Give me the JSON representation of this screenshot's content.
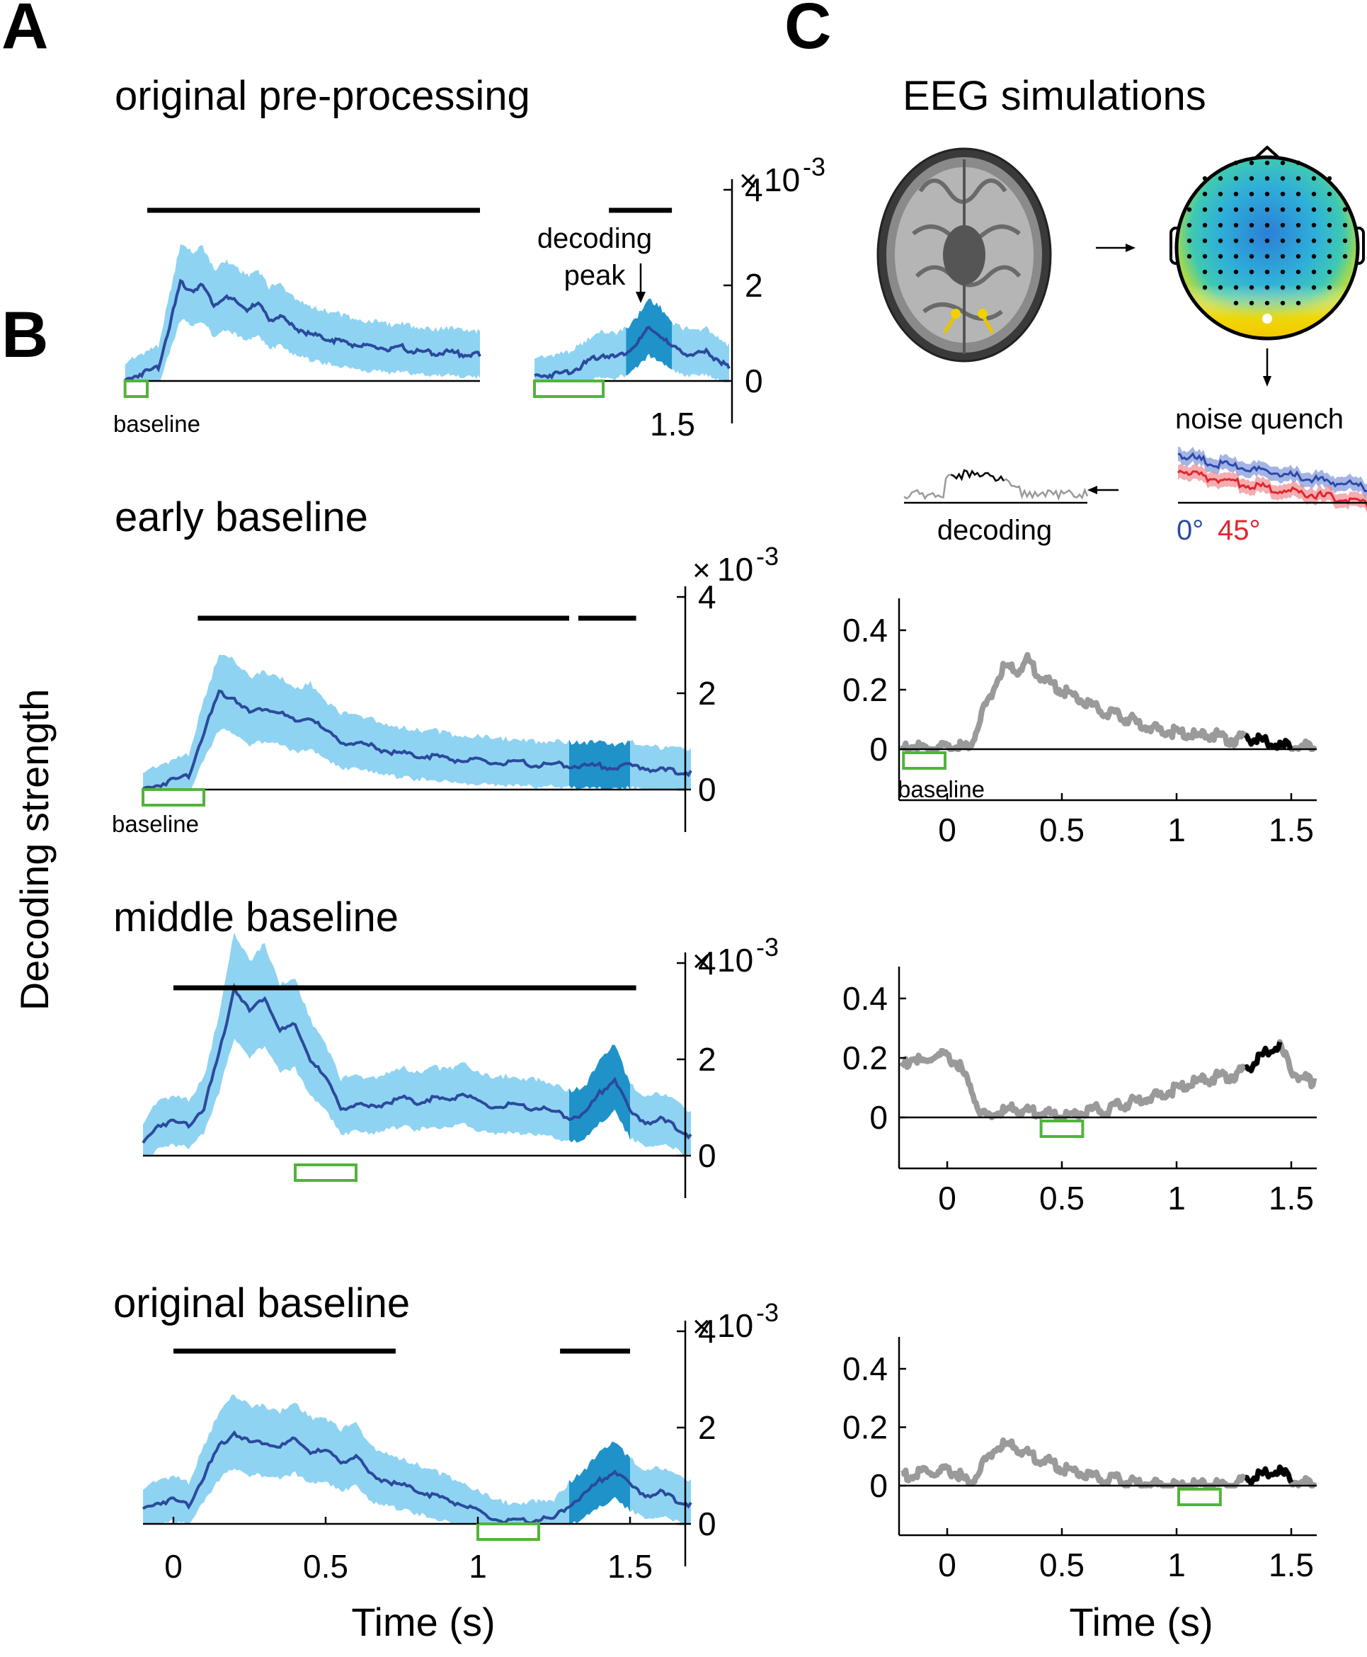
{
  "panel_labels": {
    "A": "A",
    "B": "B",
    "C": "C"
  },
  "titles": {
    "A": "original pre-processing",
    "B1": "early baseline",
    "B2": "middle baseline",
    "B3": "original baseline",
    "C": "EEG simulations"
  },
  "labels": {
    "baseline": "baseline",
    "decoding_peak_1": "decoding",
    "decoding_peak_2": "peak",
    "noise_quench": "noise quench",
    "decoding": "decoding",
    "angle_0": "0°",
    "angle_45": "45°",
    "scale_times": "×",
    "scale_base": "10",
    "scale_exp": "-3",
    "inset_x_tick": "1.5",
    "ylabel": "Decoding strength",
    "xlabel_left": "Time (s)",
    "xlabel_right": "Time (s)"
  },
  "colors": {
    "mean_line": "#2b4a9c",
    "ci_fill": "#8fd3f2",
    "highlight_fill": "#1f93c9",
    "sig_bar": "#000000",
    "baseline_box": "#52b33b",
    "sim_trace": "#9a9a9a",
    "sim_sig_trace": "#000000",
    "quench_0": "#2b4aa8",
    "quench_45": "#e0262e"
  },
  "icons": [
    "brain-mri-icon",
    "eeg-topography-icon",
    "arrow-right-icon",
    "arrow-down-icon",
    "arrow-left-icon"
  ],
  "chart_data": [
    {
      "id": "A-main",
      "type": "line",
      "title": "original pre-processing",
      "xlim": [
        -0.1,
        1.5
      ],
      "ylim": [
        0,
        4
      ],
      "y_scale": "x10^-3",
      "x": [
        -0.1,
        -0.05,
        0,
        0.05,
        0.1,
        0.15,
        0.2,
        0.25,
        0.3,
        0.35,
        0.4,
        0.45,
        0.5,
        0.55,
        0.6,
        0.65,
        0.7,
        0.75,
        0.8,
        0.85,
        0.9,
        0.95,
        1.0,
        1.05,
        1.1,
        1.15,
        1.2,
        1.25,
        1.3,
        1.35,
        1.4,
        1.45,
        1.5
      ],
      "series": [
        {
          "values": [
            0.0,
            0.12,
            0.2,
            0.3,
            1.15,
            2.05,
            1.9,
            2.0,
            1.6,
            1.75,
            1.65,
            1.5,
            1.6,
            1.3,
            1.35,
            1.15,
            1.05,
            0.95,
            0.9,
            0.85,
            0.8,
            0.75,
            0.7,
            0.7,
            0.65,
            0.7,
            0.62,
            0.6,
            0.58,
            0.6,
            0.58,
            0.55,
            0.55
          ]
        }
      ],
      "significance_bars": [
        [
          0.0,
          1.5
        ]
      ],
      "baseline_window": [
        -0.1,
        0.0
      ],
      "show_axis_ticks": false
    },
    {
      "id": "A-inset",
      "type": "line",
      "xlim": [
        0,
        1.7
      ],
      "ylim": [
        0,
        4
      ],
      "y_scale": "x10^-3",
      "x": [
        0,
        0.1,
        0.2,
        0.3,
        0.4,
        0.5,
        0.6,
        0.7,
        0.8,
        0.9,
        1.0,
        1.1,
        1.2,
        1.3,
        1.4,
        1.5,
        1.6,
        1.7
      ],
      "series": [
        {
          "values": [
            0.1,
            0.12,
            0.15,
            0.2,
            0.3,
            0.45,
            0.55,
            0.5,
            0.6,
            0.8,
            1.1,
            0.95,
            0.7,
            0.6,
            0.55,
            0.6,
            0.45,
            0.3
          ]
        }
      ],
      "highlight": [
        0.8,
        1.2
      ],
      "significance_bars": [
        [
          0.65,
          1.2
        ]
      ],
      "baseline_window": [
        0.0,
        0.6
      ],
      "yticks": [
        0,
        2,
        4
      ],
      "xticks": [
        1.5
      ]
    },
    {
      "id": "B-early",
      "type": "line",
      "title": "early baseline",
      "xlim": [
        -0.1,
        1.7
      ],
      "ylim": [
        0,
        4
      ],
      "y_scale": "x10^-3",
      "x": [
        -0.1,
        -0.05,
        0,
        0.05,
        0.1,
        0.15,
        0.2,
        0.25,
        0.3,
        0.35,
        0.4,
        0.45,
        0.5,
        0.55,
        0.6,
        0.65,
        0.7,
        0.75,
        0.8,
        0.85,
        0.9,
        0.95,
        1.0,
        1.05,
        1.1,
        1.15,
        1.2,
        1.25,
        1.3,
        1.35,
        1.4,
        1.45,
        1.5,
        1.55,
        1.6,
        1.65,
        1.7
      ],
      "series": [
        {
          "values": [
            0.0,
            0.1,
            0.2,
            0.3,
            1.2,
            2.0,
            1.9,
            1.6,
            1.7,
            1.6,
            1.4,
            1.5,
            1.2,
            1.0,
            0.95,
            0.9,
            0.8,
            0.75,
            0.7,
            0.7,
            0.65,
            0.6,
            0.6,
            0.55,
            0.55,
            0.55,
            0.5,
            0.52,
            0.5,
            0.48,
            0.5,
            0.45,
            0.5,
            0.45,
            0.4,
            0.38,
            0.35
          ]
        }
      ],
      "highlight": [
        1.3,
        1.5
      ],
      "significance_bars": [
        [
          0.08,
          1.3
        ],
        [
          1.33,
          1.52
        ]
      ],
      "baseline_window": [
        -0.1,
        0.1
      ],
      "yticks": [
        0,
        2,
        4
      ]
    },
    {
      "id": "B-middle",
      "type": "line",
      "title": "middle baseline",
      "xlim": [
        -0.1,
        1.7
      ],
      "ylim": [
        0,
        4
      ],
      "y_scale": "x10^-3",
      "x": [
        -0.1,
        -0.05,
        0,
        0.05,
        0.1,
        0.15,
        0.2,
        0.25,
        0.3,
        0.35,
        0.4,
        0.45,
        0.5,
        0.55,
        0.6,
        0.65,
        0.7,
        0.75,
        0.8,
        0.85,
        0.9,
        0.95,
        1.0,
        1.05,
        1.1,
        1.15,
        1.2,
        1.25,
        1.3,
        1.35,
        1.4,
        1.45,
        1.5,
        1.55,
        1.6,
        1.65,
        1.7
      ],
      "series": [
        {
          "values": [
            0.25,
            0.65,
            0.7,
            0.65,
            1.0,
            2.1,
            3.5,
            3.0,
            3.3,
            2.6,
            2.7,
            2.0,
            1.6,
            1.0,
            1.05,
            1.0,
            1.1,
            1.2,
            1.1,
            1.2,
            1.15,
            1.3,
            1.1,
            1.0,
            1.05,
            1.0,
            1.0,
            0.9,
            0.8,
            0.85,
            1.3,
            1.6,
            0.9,
            0.7,
            0.75,
            0.6,
            0.4
          ]
        }
      ],
      "highlight": [
        1.3,
        1.5
      ],
      "significance_bars": [
        [
          0.0,
          1.52
        ]
      ],
      "baseline_window": [
        0.4,
        0.6
      ],
      "yticks": [
        0,
        2,
        4
      ]
    },
    {
      "id": "B-original",
      "type": "line",
      "title": "original baseline",
      "xlim": [
        -0.1,
        1.7
      ],
      "ylim": [
        0,
        4
      ],
      "y_scale": "x10^-3",
      "x": [
        -0.1,
        -0.05,
        0,
        0.05,
        0.1,
        0.15,
        0.2,
        0.25,
        0.3,
        0.35,
        0.4,
        0.45,
        0.5,
        0.55,
        0.6,
        0.65,
        0.7,
        0.75,
        0.8,
        0.85,
        0.9,
        0.95,
        1.0,
        1.05,
        1.1,
        1.15,
        1.2,
        1.25,
        1.3,
        1.35,
        1.4,
        1.45,
        1.5,
        1.55,
        1.6,
        1.65,
        1.7
      ],
      "series": [
        {
          "values": [
            0.3,
            0.45,
            0.5,
            0.4,
            1.0,
            1.6,
            1.9,
            1.7,
            1.7,
            1.6,
            1.75,
            1.5,
            1.5,
            1.3,
            1.4,
            1.0,
            0.9,
            0.8,
            0.7,
            0.6,
            0.5,
            0.4,
            0.25,
            0.1,
            0.05,
            0.05,
            0.1,
            0.1,
            0.4,
            0.6,
            0.9,
            1.1,
            0.8,
            0.6,
            0.65,
            0.5,
            0.4
          ]
        }
      ],
      "highlight": [
        1.3,
        1.5
      ],
      "significance_bars": [
        [
          0.0,
          0.73
        ],
        [
          1.27,
          1.5
        ]
      ],
      "baseline_window": [
        1.0,
        1.2
      ],
      "yticks": [
        0,
        2,
        4
      ],
      "xticks": [
        0,
        0.5,
        1,
        1.5
      ]
    },
    {
      "id": "C-early",
      "type": "line",
      "xlim": [
        -0.2,
        1.6
      ],
      "ylim": [
        -0.15,
        0.45
      ],
      "x": [
        -0.2,
        -0.15,
        -0.1,
        -0.05,
        0,
        0.05,
        0.1,
        0.15,
        0.2,
        0.25,
        0.3,
        0.35,
        0.4,
        0.45,
        0.5,
        0.55,
        0.6,
        0.65,
        0.7,
        0.75,
        0.8,
        0.85,
        0.9,
        0.95,
        1.0,
        1.05,
        1.1,
        1.15,
        1.2,
        1.25,
        1.3,
        1.35,
        1.4,
        1.45,
        1.5,
        1.55,
        1.6
      ],
      "series": [
        {
          "values": [
            0.0,
            0.01,
            0.0,
            0.005,
            0.0,
            0.01,
            0.0,
            0.12,
            0.2,
            0.28,
            0.26,
            0.3,
            0.25,
            0.22,
            0.2,
            0.18,
            0.16,
            0.14,
            0.12,
            0.11,
            0.1,
            0.08,
            0.07,
            0.06,
            0.06,
            0.05,
            0.04,
            0.05,
            0.04,
            0.03,
            0.04,
            0.03,
            0.02,
            0.01,
            0.01,
            0.01,
            0.0
          ]
        }
      ],
      "significance_window": [
        1.3,
        1.5
      ],
      "baseline_window": [
        -0.2,
        0.0
      ],
      "yticks": [
        0,
        0.2,
        0.4
      ]
    },
    {
      "id": "C-middle",
      "type": "line",
      "xlim": [
        -0.2,
        1.6
      ],
      "ylim": [
        -0.15,
        0.45
      ],
      "x": [
        -0.2,
        -0.15,
        -0.1,
        -0.05,
        0,
        0.05,
        0.1,
        0.15,
        0.2,
        0.25,
        0.3,
        0.35,
        0.4,
        0.45,
        0.5,
        0.55,
        0.6,
        0.65,
        0.7,
        0.75,
        0.8,
        0.85,
        0.9,
        0.95,
        1.0,
        1.05,
        1.1,
        1.15,
        1.2,
        1.25,
        1.3,
        1.35,
        1.4,
        1.45,
        1.5,
        1.55,
        1.6
      ],
      "series": [
        {
          "values": [
            0.17,
            0.2,
            0.18,
            0.21,
            0.2,
            0.18,
            0.1,
            0.01,
            0.01,
            0.02,
            0.03,
            0.02,
            0.02,
            0.01,
            0.0,
            0.01,
            0.02,
            0.03,
            0.02,
            0.04,
            0.05,
            0.06,
            0.07,
            0.08,
            0.1,
            0.11,
            0.12,
            0.13,
            0.14,
            0.14,
            0.16,
            0.19,
            0.22,
            0.24,
            0.16,
            0.13,
            0.12
          ]
        }
      ],
      "significance_window": [
        1.3,
        1.45
      ],
      "baseline_window": [
        0.4,
        0.6
      ],
      "yticks": [
        0,
        0.2,
        0.4
      ]
    },
    {
      "id": "C-original",
      "type": "line",
      "xlim": [
        -0.2,
        1.6
      ],
      "ylim": [
        -0.15,
        0.45
      ],
      "x": [
        -0.2,
        -0.15,
        -0.1,
        -0.05,
        0,
        0.05,
        0.1,
        0.15,
        0.2,
        0.25,
        0.3,
        0.35,
        0.4,
        0.45,
        0.5,
        0.55,
        0.6,
        0.65,
        0.7,
        0.75,
        0.8,
        0.85,
        0.9,
        0.95,
        1.0,
        1.05,
        1.1,
        1.15,
        1.2,
        1.25,
        1.3,
        1.35,
        1.4,
        1.45,
        1.5,
        1.55,
        1.6
      ],
      "series": [
        {
          "values": [
            0.04,
            0.03,
            0.05,
            0.04,
            0.05,
            0.04,
            0.0,
            0.07,
            0.12,
            0.14,
            0.13,
            0.11,
            0.09,
            0.08,
            0.06,
            0.05,
            0.04,
            0.03,
            0.02,
            0.02,
            0.01,
            0.01,
            0.005,
            0.0,
            0.0,
            0.0,
            0.0,
            0.0,
            0.0,
            0.0,
            0.02,
            0.03,
            0.04,
            0.05,
            0.02,
            0.01,
            0.0
          ]
        }
      ],
      "significance_window": [
        1.3,
        1.5
      ],
      "baseline_window": [
        1.0,
        1.2
      ],
      "yticks": [
        0,
        0.2,
        0.4
      ],
      "xticks": [
        0,
        0.5,
        1,
        1.5
      ]
    }
  ]
}
